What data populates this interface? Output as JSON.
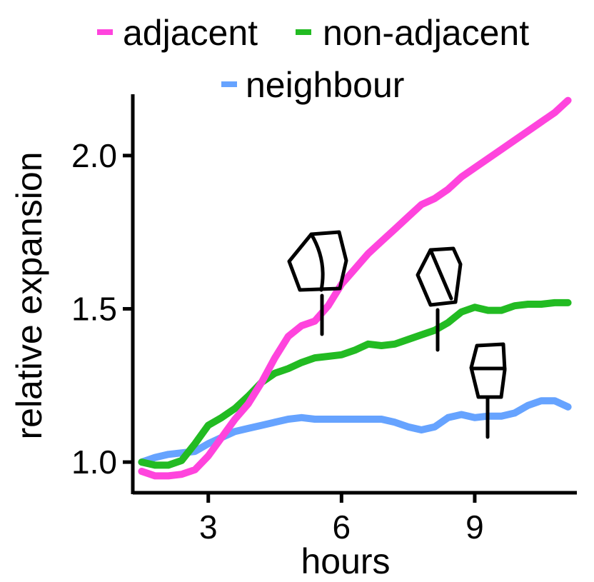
{
  "chart_data": {
    "type": "line",
    "xlabel": "hours",
    "ylabel": "relative expansion",
    "xlim": [
      1.3,
      11.3
    ],
    "ylim": [
      0.9,
      2.2
    ],
    "x_ticks": [
      3,
      6,
      9
    ],
    "x_tick_labels": [
      "3",
      "6",
      "9"
    ],
    "y_ticks": [
      1.0,
      1.5,
      2.0
    ],
    "y_tick_labels": [
      "1.0",
      "1.5",
      "2.0"
    ],
    "grid": false,
    "legend_position": "top",
    "series": [
      {
        "name": "adjacent",
        "color": "#ff44dd",
        "points": [
          [
            1.5,
            0.97
          ],
          [
            1.8,
            0.955
          ],
          [
            2.1,
            0.955
          ],
          [
            2.4,
            0.96
          ],
          [
            2.7,
            0.975
          ],
          [
            3.0,
            1.02
          ],
          [
            3.3,
            1.08
          ],
          [
            3.6,
            1.14
          ],
          [
            3.9,
            1.19
          ],
          [
            4.2,
            1.26
          ],
          [
            4.5,
            1.34
          ],
          [
            4.8,
            1.41
          ],
          [
            5.1,
            1.445
          ],
          [
            5.4,
            1.46
          ],
          [
            5.7,
            1.51
          ],
          [
            6.0,
            1.58
          ],
          [
            6.3,
            1.63
          ],
          [
            6.6,
            1.68
          ],
          [
            6.9,
            1.72
          ],
          [
            7.2,
            1.76
          ],
          [
            7.5,
            1.8
          ],
          [
            7.8,
            1.84
          ],
          [
            8.1,
            1.86
          ],
          [
            8.4,
            1.89
          ],
          [
            8.7,
            1.93
          ],
          [
            9.0,
            1.96
          ],
          [
            9.3,
            1.99
          ],
          [
            9.6,
            2.02
          ],
          [
            9.9,
            2.05
          ],
          [
            10.2,
            2.08
          ],
          [
            10.5,
            2.11
          ],
          [
            10.8,
            2.14
          ],
          [
            11.1,
            2.18
          ]
        ]
      },
      {
        "name": "non-adjacent",
        "color": "#22bb22",
        "points": [
          [
            1.5,
            1.0
          ],
          [
            1.8,
            0.99
          ],
          [
            2.1,
            0.99
          ],
          [
            2.4,
            1.005
          ],
          [
            2.7,
            1.06
          ],
          [
            3.0,
            1.12
          ],
          [
            3.3,
            1.145
          ],
          [
            3.6,
            1.175
          ],
          [
            3.9,
            1.215
          ],
          [
            4.2,
            1.26
          ],
          [
            4.5,
            1.29
          ],
          [
            4.8,
            1.305
          ],
          [
            5.1,
            1.325
          ],
          [
            5.4,
            1.34
          ],
          [
            5.7,
            1.345
          ],
          [
            6.0,
            1.35
          ],
          [
            6.3,
            1.365
          ],
          [
            6.6,
            1.385
          ],
          [
            6.9,
            1.38
          ],
          [
            7.2,
            1.385
          ],
          [
            7.5,
            1.4
          ],
          [
            7.8,
            1.415
          ],
          [
            8.1,
            1.43
          ],
          [
            8.4,
            1.455
          ],
          [
            8.7,
            1.49
          ],
          [
            9.0,
            1.505
          ],
          [
            9.3,
            1.495
          ],
          [
            9.6,
            1.495
          ],
          [
            9.9,
            1.51
          ],
          [
            10.2,
            1.515
          ],
          [
            10.5,
            1.515
          ],
          [
            10.8,
            1.52
          ],
          [
            11.1,
            1.52
          ]
        ]
      },
      {
        "name": "neighbour",
        "color": "#66a3ff",
        "points": [
          [
            1.5,
            1.0
          ],
          [
            1.8,
            1.015
          ],
          [
            2.1,
            1.025
          ],
          [
            2.4,
            1.03
          ],
          [
            2.7,
            1.035
          ],
          [
            3.0,
            1.06
          ],
          [
            3.3,
            1.08
          ],
          [
            3.6,
            1.1
          ],
          [
            3.9,
            1.11
          ],
          [
            4.2,
            1.12
          ],
          [
            4.5,
            1.13
          ],
          [
            4.8,
            1.14
          ],
          [
            5.1,
            1.145
          ],
          [
            5.4,
            1.14
          ],
          [
            5.7,
            1.14
          ],
          [
            6.0,
            1.14
          ],
          [
            6.3,
            1.14
          ],
          [
            6.6,
            1.14
          ],
          [
            6.9,
            1.14
          ],
          [
            7.2,
            1.13
          ],
          [
            7.5,
            1.115
          ],
          [
            7.8,
            1.105
          ],
          [
            8.1,
            1.115
          ],
          [
            8.4,
            1.145
          ],
          [
            8.7,
            1.155
          ],
          [
            9.0,
            1.145
          ],
          [
            9.3,
            1.15
          ],
          [
            9.6,
            1.15
          ],
          [
            9.9,
            1.16
          ],
          [
            10.2,
            1.185
          ],
          [
            10.5,
            1.2
          ],
          [
            10.8,
            1.2
          ],
          [
            11.1,
            1.18
          ]
        ]
      }
    ]
  }
}
